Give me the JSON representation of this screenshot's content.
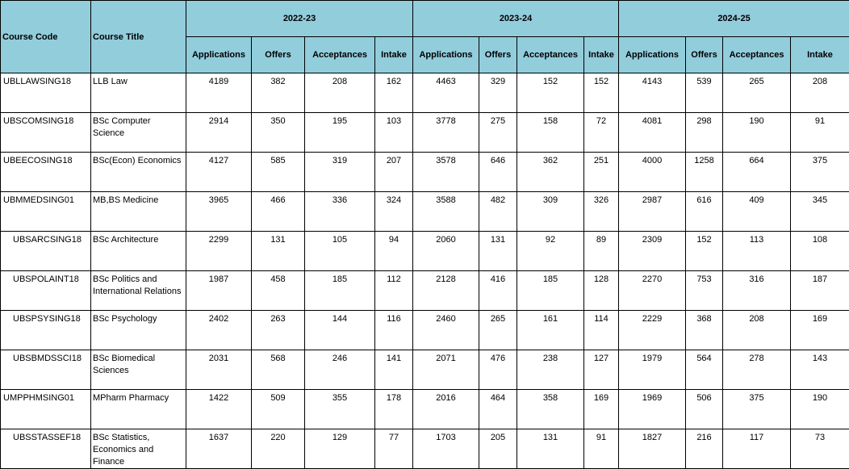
{
  "headers": {
    "course_code": "Course Code",
    "course_title": "Course Title",
    "years": [
      "2022-23",
      "2023-24",
      "2024-25"
    ],
    "metrics": [
      "Applications",
      "Offers",
      "Acceptances",
      "Intake"
    ]
  },
  "rows": [
    {
      "code": "UBLLAWSING18",
      "title": "LLB Law",
      "indent": false,
      "values": [
        4189,
        382,
        208,
        162,
        4463,
        329,
        152,
        152,
        4143,
        539,
        265,
        208
      ]
    },
    {
      "code": "UBSCOMSING18",
      "title": "BSc Computer Science",
      "indent": false,
      "values": [
        2914,
        350,
        195,
        103,
        3778,
        275,
        158,
        72,
        4081,
        298,
        190,
        91
      ]
    },
    {
      "code": "UBEECOSING18",
      "title": "BSc(Econ) Economics",
      "indent": false,
      "values": [
        4127,
        585,
        319,
        207,
        3578,
        646,
        362,
        251,
        4000,
        1258,
        664,
        375
      ]
    },
    {
      "code": "UBMMEDSING01",
      "title": "MB,BS Medicine",
      "indent": false,
      "values": [
        3965,
        466,
        336,
        324,
        3588,
        482,
        309,
        326,
        2987,
        616,
        409,
        345
      ]
    },
    {
      "code": "UBSARCSING18",
      "title": "BSc Architecture",
      "indent": true,
      "values": [
        2299,
        131,
        105,
        94,
        2060,
        131,
        92,
        89,
        2309,
        152,
        113,
        108
      ]
    },
    {
      "code": "UBSPOLAINT18",
      "title": "BSc Politics and International Relations",
      "indent": true,
      "values": [
        1987,
        458,
        185,
        112,
        2128,
        416,
        185,
        128,
        2270,
        753,
        316,
        187
      ]
    },
    {
      "code": "UBSPSYSING18",
      "title": "BSc Psychology",
      "indent": true,
      "values": [
        2402,
        263,
        144,
        116,
        2460,
        265,
        161,
        114,
        2229,
        368,
        208,
        169
      ]
    },
    {
      "code": "UBSBMDSSCI18",
      "title": "BSc Biomedical Sciences",
      "indent": true,
      "values": [
        2031,
        568,
        246,
        141,
        2071,
        476,
        238,
        127,
        1979,
        564,
        278,
        143
      ]
    },
    {
      "code": "UMPPHMSING01",
      "title": "MPharm Pharmacy",
      "indent": false,
      "values": [
        1422,
        509,
        355,
        178,
        2016,
        464,
        358,
        169,
        1969,
        506,
        375,
        190
      ]
    },
    {
      "code": "UBSSTASSEF18",
      "title": "BSc Statistics, Economics and Finance",
      "indent": true,
      "values": [
        1637,
        220,
        129,
        77,
        1703,
        205,
        131,
        91,
        1827,
        216,
        117,
        73
      ]
    }
  ]
}
